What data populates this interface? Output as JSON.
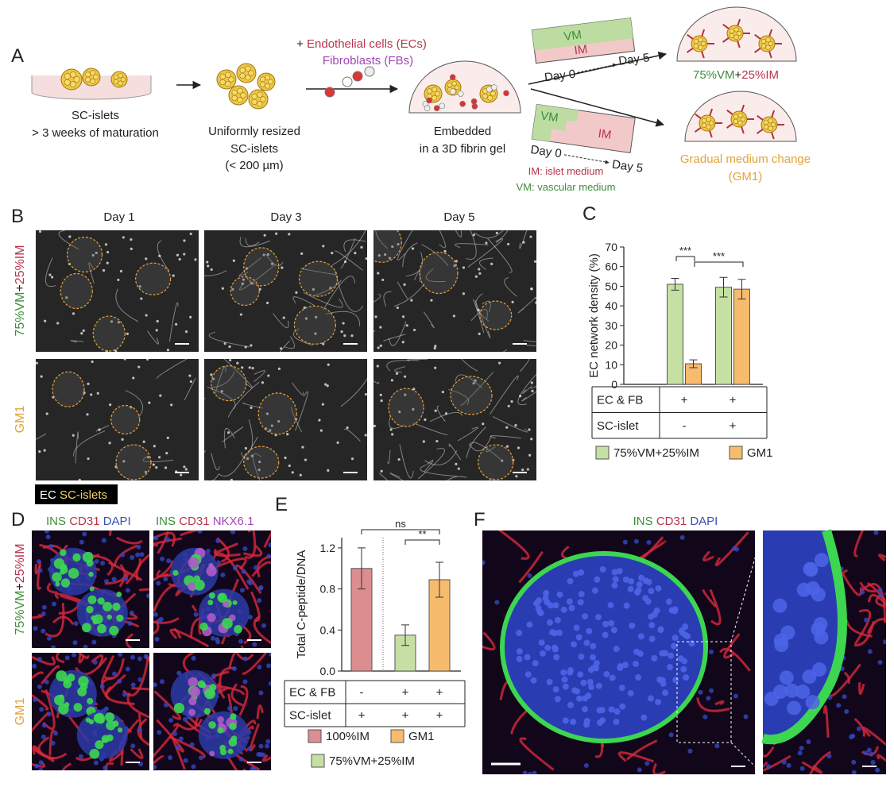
{
  "panel_a": {
    "label": "A",
    "step1": [
      "SC-islets",
      "> 3 weeks of maturation"
    ],
    "step2": [
      "Uniformly resized",
      "SC-islets",
      "(< 200 µm)"
    ],
    "additions": [
      "+",
      "Endothelial cells (ECs)",
      "Fibroblasts (FBs)"
    ],
    "step3": [
      "Embedded",
      "in a 3D fibrin gel"
    ],
    "schedule_top": {
      "vm": "VM",
      "im": "IM",
      "start": "Day 0",
      "end": "Day 5"
    },
    "schedule_bottom": {
      "vm": "VM",
      "im": "IM",
      "start": "Day 0",
      "end": "Day 5"
    },
    "result_top": [
      "75%VM",
      "+",
      "25%IM"
    ],
    "result_bottom": [
      "Gradual medium change",
      "(GM1)"
    ],
    "legend": [
      "IM: islet medium",
      "VM: vascular medium"
    ]
  },
  "panel_b": {
    "label": "B",
    "columns": [
      "Day 1",
      "Day 3",
      "Day 5"
    ],
    "rows": [
      [
        "75%VM",
        "+",
        "25%IM"
      ],
      [
        "GM1"
      ]
    ],
    "legend": [
      "EC",
      "SC-islets"
    ]
  },
  "panel_d": {
    "label": "D",
    "stains": [
      [
        "INS",
        "CD31",
        "DAPI"
      ],
      [
        "INS",
        "CD31",
        "NKX6.1"
      ]
    ],
    "rows": [
      [
        "75%VM",
        "+",
        "25%IM"
      ],
      [
        "GM1"
      ]
    ]
  },
  "panel_f": {
    "label": "F",
    "stains": [
      "INS",
      "CD31",
      "DAPI"
    ]
  },
  "chart_data": [
    {
      "type": "bar",
      "panel_label": "C",
      "y_label": "EC network density (%)",
      "ylim": [
        0,
        70
      ],
      "yticks": [
        0,
        10,
        20,
        30,
        40,
        50,
        60,
        70
      ],
      "series": [
        {
          "name": "75%VM+25%IM",
          "color": "#c6e0a4",
          "values": [
            51,
            49.5
          ],
          "errors": [
            3,
            5
          ]
        },
        {
          "name": "GM1",
          "color": "#f7bb6e",
          "values": [
            10.5,
            48.5
          ],
          "errors": [
            2,
            5
          ]
        }
      ],
      "table": [
        {
          "label": "EC & FB",
          "cells": [
            "+",
            "+"
          ]
        },
        {
          "label": "SC-islet",
          "cells": [
            "-",
            "+"
          ]
        }
      ],
      "annotations": [
        "***",
        "***"
      ]
    },
    {
      "type": "bar",
      "panel_label": "E",
      "y_label": "Total C-peptide/DNA",
      "ylim": [
        0,
        1.3
      ],
      "yticks": [
        {
          "value": 0,
          "label": "0.0"
        },
        0.4,
        0.8,
        1.2
      ],
      "series": [
        {
          "name": "100%IM",
          "color": "#dc8d90",
          "values": [
            1.0,
            null,
            null
          ],
          "errors": [
            0.2,
            null,
            null
          ]
        },
        {
          "name": "GM1",
          "color": "#f7bb6e",
          "values": [
            null,
            null,
            0.89
          ],
          "errors": [
            null,
            null,
            0.17
          ]
        },
        {
          "name": "75%VM+25%IM",
          "color": "#c6e0a4",
          "values": [
            null,
            0.35,
            null
          ],
          "errors": [
            null,
            0.1,
            null
          ]
        }
      ],
      "table": [
        {
          "label": "EC & FB",
          "cells": [
            "-",
            "+",
            "+"
          ]
        },
        {
          "label": "SC-islet",
          "cells": [
            "+",
            "+",
            "+"
          ]
        }
      ],
      "annotations": [
        "ns",
        "**"
      ]
    }
  ]
}
